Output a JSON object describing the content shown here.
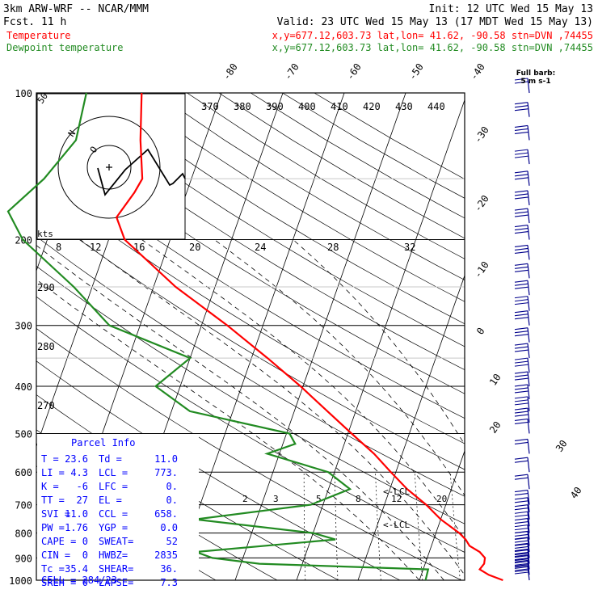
{
  "header": {
    "model": "3km ARW-WRF -- NCAR/MMM",
    "init": "Init: 12 UTC Wed 15 May 13",
    "fcst": "Fcst.   11 h",
    "valid": "Valid: 23 UTC Wed 15 May 13 (17 MDT Wed 15 May 13)",
    "temp_name": "Temperature",
    "temp_info": "x,y=677.12,603.73   lat,lon= 41.62, -90.58  stn=DVN ,74455",
    "dew_name": "Dewpoint temperature",
    "dew_info": "x,y=677.12,603.73   lat,lon= 41.62, -90.58  stn=DVN ,74455"
  },
  "colors": {
    "temperature": "#ff0000",
    "dewpoint": "#228b22",
    "parcel_text": "#0000ff",
    "wind_barbs": "#00008b",
    "grid": "#000000"
  },
  "chart_data": {
    "type": "line",
    "title": "Skew-T log-P sounding",
    "ylabel_ticks": [
      100,
      200,
      300,
      400,
      500,
      600,
      700,
      800,
      900,
      1000
    ],
    "isotherm_labels": [
      -80,
      -70,
      -60,
      -50,
      -40,
      -30,
      -20,
      -10,
      0,
      10,
      20,
      30,
      40
    ],
    "theta_labels": [
      370,
      380,
      390,
      400,
      410,
      420,
      430,
      440
    ],
    "theta_e_labels": [
      290,
      280,
      270
    ],
    "mixing_ratio_labels": [
      2,
      3,
      5,
      8,
      12,
      20
    ],
    "hodograph": {
      "unit": "kts",
      "ring_labels": [
        50
      ],
      "x_labels": [
        8,
        12,
        16,
        20,
        24,
        28,
        32
      ]
    },
    "wind_barb_legend": "Full barb:\n5 m s-1",
    "lcl_label": "LCL",
    "series": [
      {
        "name": "Temperature",
        "color": "#ff0000",
        "points": [
          {
            "p": 1000,
            "t": 23.6
          },
          {
            "p": 975,
            "t": 21.0
          },
          {
            "p": 950,
            "t": 19.2
          },
          {
            "p": 925,
            "t": 19.6
          },
          {
            "p": 900,
            "t": 19.4
          },
          {
            "p": 875,
            "t": 18.2
          },
          {
            "p": 850,
            "t": 16.2
          },
          {
            "p": 825,
            "t": 15.2
          },
          {
            "p": 800,
            "t": 13.8
          },
          {
            "p": 750,
            "t": 10.0
          },
          {
            "p": 700,
            "t": 6.8
          },
          {
            "p": 650,
            "t": 2.8
          },
          {
            "p": 600,
            "t": -0.8
          },
          {
            "p": 550,
            "t": -4.6
          },
          {
            "p": 500,
            "t": -9.4
          },
          {
            "p": 450,
            "t": -14.6
          },
          {
            "p": 400,
            "t": -20.4
          },
          {
            "p": 350,
            "t": -27.4
          },
          {
            "p": 300,
            "t": -35.8
          },
          {
            "p": 250,
            "t": -46.4
          },
          {
            "p": 200,
            "t": -57.4
          },
          {
            "p": 180,
            "t": -60.0
          },
          {
            "p": 160,
            "t": -58.5
          },
          {
            "p": 150,
            "t": -58.0
          },
          {
            "p": 125,
            "t": -60.5
          },
          {
            "p": 100,
            "t": -63.0
          }
        ]
      },
      {
        "name": "Dewpoint temperature",
        "color": "#228b22",
        "points": [
          {
            "p": 1000,
            "t": 11.0
          },
          {
            "p": 950,
            "t": 10.8
          },
          {
            "p": 925,
            "t": -17.0
          },
          {
            "p": 900,
            "t": -25.0
          },
          {
            "p": 875,
            "t": -28.0
          },
          {
            "p": 825,
            "t": -6.0
          },
          {
            "p": 800,
            "t": -10.0
          },
          {
            "p": 750,
            "t": -30.0
          },
          {
            "p": 700,
            "t": -12.0
          },
          {
            "p": 650,
            "t": -6.5
          },
          {
            "p": 600,
            "t": -11.0
          },
          {
            "p": 550,
            "t": -22.0
          },
          {
            "p": 525,
            "t": -18.0
          },
          {
            "p": 500,
            "t": -19.5
          },
          {
            "p": 450,
            "t": -37.0
          },
          {
            "p": 400,
            "t": -44.0
          },
          {
            "p": 350,
            "t": -40.0
          },
          {
            "p": 300,
            "t": -55.0
          },
          {
            "p": 250,
            "t": -63.0
          },
          {
            "p": 200,
            "t": -74.0
          },
          {
            "p": 175,
            "t": -78.0
          },
          {
            "p": 150,
            "t": -74.0
          },
          {
            "p": 125,
            "t": -71.0
          },
          {
            "p": 100,
            "t": -72.0
          }
        ]
      }
    ],
    "wind_barbs": [
      {
        "p": 1000,
        "n": 3
      },
      {
        "p": 975,
        "n": 4
      },
      {
        "p": 950,
        "n": 4
      },
      {
        "p": 925,
        "n": 4
      },
      {
        "p": 900,
        "n": 4
      },
      {
        "p": 875,
        "n": 3
      },
      {
        "p": 850,
        "n": 3
      },
      {
        "p": 825,
        "n": 3
      },
      {
        "p": 800,
        "n": 2
      },
      {
        "p": 775,
        "n": 2
      },
      {
        "p": 750,
        "n": 2
      },
      {
        "p": 725,
        "n": 2
      },
      {
        "p": 700,
        "n": 2
      },
      {
        "p": 650,
        "n": 2
      },
      {
        "p": 600,
        "n": 2
      },
      {
        "p": 550,
        "n": 2
      },
      {
        "p": 500,
        "n": 2
      },
      {
        "p": 475,
        "n": 3
      },
      {
        "p": 450,
        "n": 3
      },
      {
        "p": 425,
        "n": 3
      },
      {
        "p": 400,
        "n": 3
      },
      {
        "p": 375,
        "n": 3
      },
      {
        "p": 350,
        "n": 3
      },
      {
        "p": 325,
        "n": 3
      },
      {
        "p": 300,
        "n": 3
      },
      {
        "p": 280,
        "n": 3
      },
      {
        "p": 260,
        "n": 3
      },
      {
        "p": 240,
        "n": 3
      },
      {
        "p": 220,
        "n": 3
      },
      {
        "p": 200,
        "n": 3
      },
      {
        "p": 185,
        "n": 3
      },
      {
        "p": 170,
        "n": 3
      },
      {
        "p": 155,
        "n": 3
      },
      {
        "p": 140,
        "n": 3
      },
      {
        "p": 125,
        "n": 3
      },
      {
        "p": 112,
        "n": 3
      },
      {
        "p": 100,
        "n": 2
      }
    ]
  },
  "parcel_info": {
    "title": "Parcel Info",
    "rows": [
      {
        "a": "T  =",
        "av": "23.6",
        "b": "Td =",
        "bv": "11.0"
      },
      {
        "a": "LI =",
        "av": "4.3",
        "b": "LCL =",
        "bv": "773."
      },
      {
        "a": "K  =",
        "av": "-6",
        "b": "LFC =",
        "bv": "0."
      },
      {
        "a": "TT =",
        "av": "27",
        "b": "EL =",
        "bv": "0."
      },
      {
        "a": "SVI =",
        "av": "11.0",
        "b": "CCL =",
        "bv": "658."
      },
      {
        "a": "PW =",
        "av": "1.76",
        "b": "YGP =",
        "bv": "0.0"
      },
      {
        "a": "CAPE =",
        "av": "0",
        "b": "SWEAT=",
        "bv": "52"
      },
      {
        "a": "CIN =",
        "av": "0",
        "b": "HWBZ=",
        "bv": "2835"
      },
      {
        "a": "Tc =",
        "av": "35.4",
        "b": "SHEAR=",
        "bv": "36."
      },
      {
        "a": "SREH =",
        "av": "0",
        "b": "LAPSE=",
        "bv": "7.3"
      }
    ],
    "cell": "CELL = 284/23"
  }
}
